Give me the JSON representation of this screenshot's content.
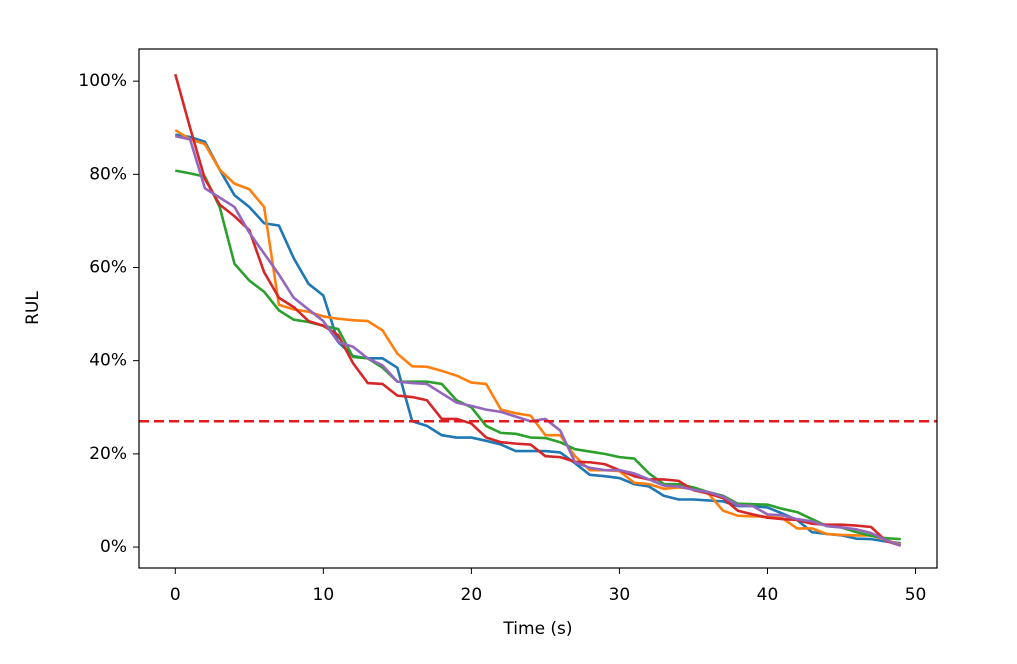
{
  "chart_data": {
    "type": "line",
    "xlabel": "Time (s)",
    "ylabel": "RUL",
    "x": [
      0,
      1,
      2,
      3,
      4,
      5,
      6,
      7,
      8,
      9,
      10,
      11,
      12,
      13,
      14,
      15,
      16,
      17,
      18,
      19,
      20,
      21,
      22,
      23,
      24,
      25,
      26,
      27,
      28,
      29,
      30,
      31,
      32,
      33,
      34,
      35,
      36,
      37,
      38,
      39,
      40,
      41,
      42,
      43,
      44,
      45,
      46,
      47,
      48,
      49
    ],
    "xlim": [
      -2.45,
      51.45
    ],
    "xticks": [
      0,
      10,
      20,
      30,
      40,
      50
    ],
    "ylim": [
      -4.5,
      106.9
    ],
    "yticks": [
      {
        "value": 0,
        "label": "0%"
      },
      {
        "value": 20,
        "label": "20%"
      },
      {
        "value": 40,
        "label": "40%"
      },
      {
        "value": 60,
        "label": "60%"
      },
      {
        "value": 80,
        "label": "80%"
      },
      {
        "value": 100,
        "label": "100%"
      }
    ],
    "threshold": 27,
    "threshold_color": "#e31a1c",
    "series": [
      {
        "color": "#1f77b4",
        "values": [
          88.5,
          88,
          87,
          81,
          75.5,
          73,
          69.5,
          69,
          62,
          56.5,
          54,
          44,
          41,
          40.5,
          40.5,
          38.5,
          27,
          26,
          24,
          23.5,
          23.5,
          22.8,
          22,
          20.6,
          20.6,
          20.6,
          20.3,
          18,
          15.5,
          15.2,
          14.8,
          13.5,
          13,
          11,
          10.2,
          10.2,
          10,
          9.8,
          8.8,
          8.8,
          8.5,
          7.2,
          5.8,
          3.2,
          2.8,
          2.5,
          1.8,
          1.7,
          1.2,
          0.8
        ]
      },
      {
        "color": "#ff7f0e",
        "values": [
          89.5,
          87.5,
          86.5,
          81,
          78,
          76.8,
          73,
          52,
          51,
          50.5,
          49.5,
          49,
          48.7,
          48.5,
          46.5,
          41.5,
          38.8,
          38.7,
          37.8,
          36.8,
          35.3,
          35,
          29.5,
          28.7,
          28.2,
          24,
          24,
          19.5,
          16.5,
          16.5,
          16.3,
          13.8,
          13.5,
          12.5,
          12.8,
          12.5,
          11.5,
          7.8,
          6.7,
          6.6,
          6.5,
          6.2,
          4,
          4,
          2.8,
          2.6,
          2.5,
          2.5,
          1.5,
          0.5
        ]
      },
      {
        "color": "#2ca02c",
        "values": [
          80.8,
          80.2,
          79.5,
          73,
          60.8,
          57.2,
          54.8,
          50.8,
          48.8,
          48.3,
          47.5,
          46.8,
          40.8,
          40.5,
          38.5,
          35.5,
          35.5,
          35.5,
          35,
          31.5,
          30,
          26,
          24.5,
          24.3,
          23.5,
          23.4,
          22.5,
          21,
          20.5,
          20,
          19.3,
          19,
          15.8,
          13.5,
          13.5,
          12.8,
          11.8,
          11,
          9.3,
          9.2,
          9.1,
          8.2,
          7.5,
          6,
          4.5,
          4.2,
          3.2,
          2.4,
          1.9,
          1.7
        ]
      },
      {
        "color": "#d62728",
        "values": [
          101.5,
          90,
          79,
          73.5,
          71,
          68,
          59,
          53.5,
          51.5,
          48.5,
          47.5,
          45.5,
          39.5,
          35.2,
          35,
          32.5,
          32.2,
          31.5,
          27.5,
          27.5,
          26.5,
          23.5,
          22.5,
          22.2,
          22,
          19.5,
          19.3,
          18.3,
          18.2,
          17.8,
          16.5,
          15.2,
          14.5,
          14.5,
          14.2,
          12.2,
          11.5,
          10.5,
          7.8,
          7,
          6.3,
          6,
          5.8,
          5,
          4.8,
          4.8,
          4.6,
          4.3,
          1.3,
          0.3
        ]
      },
      {
        "color": "#9467bd",
        "values": [
          88.2,
          87.5,
          77,
          75,
          73,
          67.5,
          63,
          58.5,
          53.5,
          51,
          48.5,
          44,
          43,
          40.5,
          39,
          35.5,
          35.2,
          35,
          33,
          31,
          30.3,
          29.5,
          29,
          28,
          27,
          27.5,
          25,
          18.2,
          17,
          16.5,
          16.5,
          15.8,
          14.5,
          13.2,
          13,
          12.3,
          11.8,
          10.8,
          9,
          8.8,
          7,
          6.8,
          6,
          5.5,
          4.5,
          4.2,
          3.8,
          3,
          1.5,
          0.3
        ]
      }
    ]
  }
}
